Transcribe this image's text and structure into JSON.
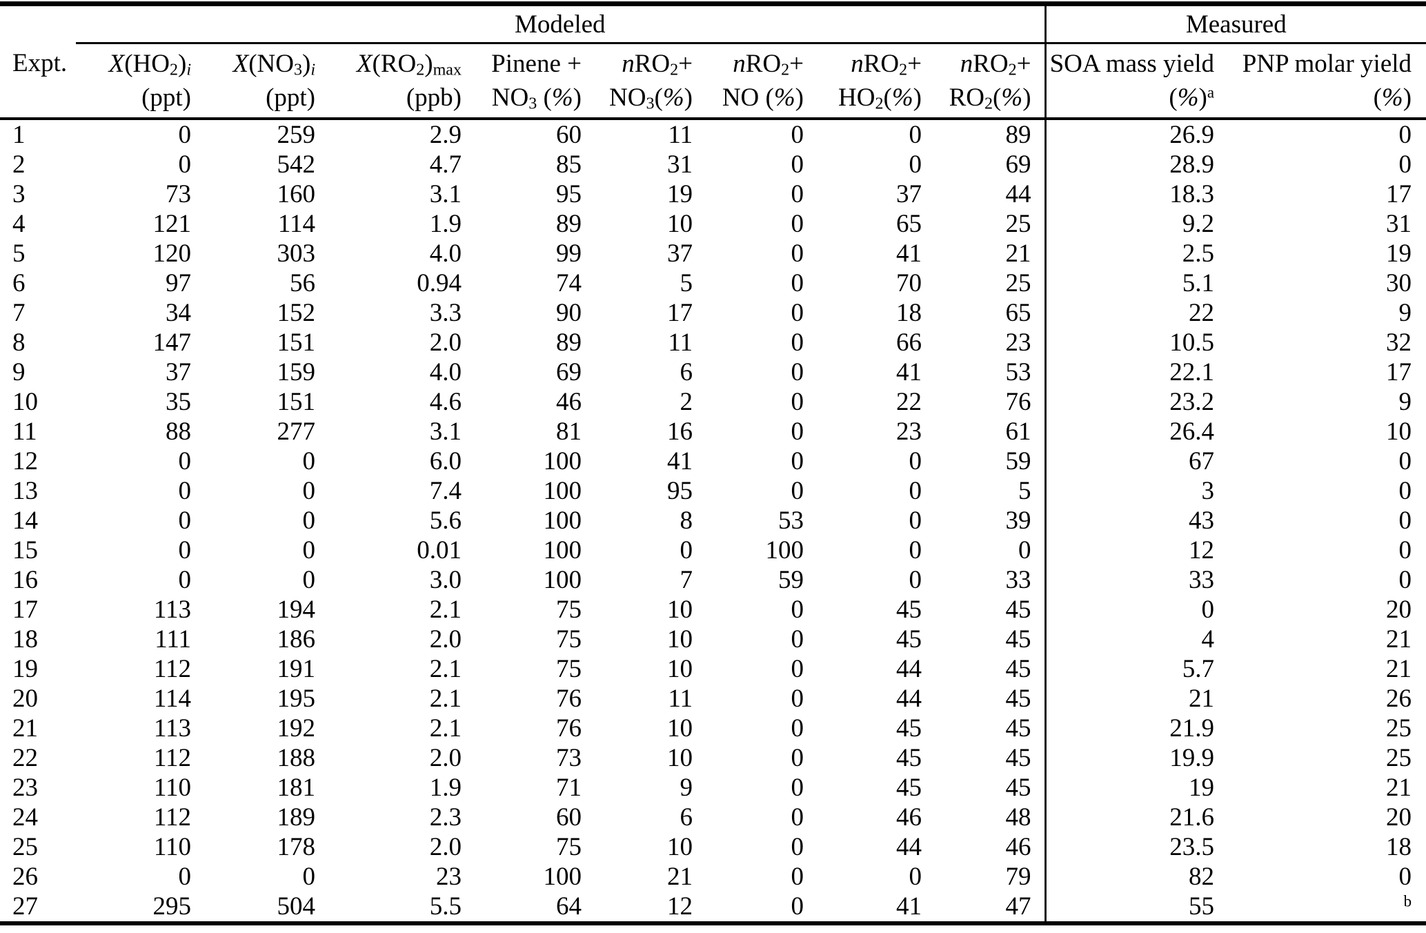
{
  "title_groups": {
    "modeled": "Modeled",
    "measured": "Measured"
  },
  "columns": [
    {
      "id": "expt",
      "line1": "Expt.",
      "line2": ""
    },
    {
      "id": "x_ho2_i",
      "line1": "*X*(HO_{2})_{*i*}",
      "line2": "(ppt)"
    },
    {
      "id": "x_no3_i",
      "line1": "*X*(NO_{3})_{*i*}",
      "line2": "(ppt)"
    },
    {
      "id": "x_ro2_max",
      "line1": "*X*(RO_{2})_{max}",
      "line2": "(ppb)"
    },
    {
      "id": "pinene_no3",
      "line1": "Pinene +",
      "line2": "NO_{3} (*%*)"
    },
    {
      "id": "nro2_no3",
      "line1": "*n*RO_{2}+",
      "line2": "NO_{3}(*%*)"
    },
    {
      "id": "nro2_no",
      "line1": "*n*RO_{2}+",
      "line2": "NO (*%*)"
    },
    {
      "id": "nro2_ho2",
      "line1": "*n*RO_{2}+",
      "line2": "HO_{2}(*%*)"
    },
    {
      "id": "nro2_ro2",
      "line1": "*n*RO_{2}+",
      "line2": "RO_{2}(*%*)"
    },
    {
      "id": "soa_yield",
      "line1": "SOA mass yield",
      "line2": "(*%*)^{a}"
    },
    {
      "id": "pnp_yield",
      "line1": "PNP molar yield",
      "line2": "(*%*)"
    }
  ],
  "footnote_markers": [
    "a",
    "b"
  ],
  "rows": [
    [
      "1",
      "0",
      "259",
      "2.9",
      "60",
      "11",
      "0",
      "0",
      "89",
      "26.9",
      "0"
    ],
    [
      "2",
      "0",
      "542",
      "4.7",
      "85",
      "31",
      "0",
      "0",
      "69",
      "28.9",
      "0"
    ],
    [
      "3",
      "73",
      "160",
      "3.1",
      "95",
      "19",
      "0",
      "37",
      "44",
      "18.3",
      "17"
    ],
    [
      "4",
      "121",
      "114",
      "1.9",
      "89",
      "10",
      "0",
      "65",
      "25",
      "9.2",
      "31"
    ],
    [
      "5",
      "120",
      "303",
      "4.0",
      "99",
      "37",
      "0",
      "41",
      "21",
      "2.5",
      "19"
    ],
    [
      "6",
      "97",
      "56",
      "0.94",
      "74",
      "5",
      "0",
      "70",
      "25",
      "5.1",
      "30"
    ],
    [
      "7",
      "34",
      "152",
      "3.3",
      "90",
      "17",
      "0",
      "18",
      "65",
      "22",
      "9"
    ],
    [
      "8",
      "147",
      "151",
      "2.0",
      "89",
      "11",
      "0",
      "66",
      "23",
      "10.5",
      "32"
    ],
    [
      "9",
      "37",
      "159",
      "4.0",
      "69",
      "6",
      "0",
      "41",
      "53",
      "22.1",
      "17"
    ],
    [
      "10",
      "35",
      "151",
      "4.6",
      "46",
      "2",
      "0",
      "22",
      "76",
      "23.2",
      "9"
    ],
    [
      "11",
      "88",
      "277",
      "3.1",
      "81",
      "16",
      "0",
      "23",
      "61",
      "26.4",
      "10"
    ],
    [
      "12",
      "0",
      "0",
      "6.0",
      "100",
      "41",
      "0",
      "0",
      "59",
      "67",
      "0"
    ],
    [
      "13",
      "0",
      "0",
      "7.4",
      "100",
      "95",
      "0",
      "0",
      "5",
      "3",
      "0"
    ],
    [
      "14",
      "0",
      "0",
      "5.6",
      "100",
      "8",
      "53",
      "0",
      "39",
      "43",
      "0"
    ],
    [
      "15",
      "0",
      "0",
      "0.01",
      "100",
      "0",
      "100",
      "0",
      "0",
      "12",
      "0"
    ],
    [
      "16",
      "0",
      "0",
      "3.0",
      "100",
      "7",
      "59",
      "0",
      "33",
      "33",
      "0"
    ],
    [
      "17",
      "113",
      "194",
      "2.1",
      "75",
      "10",
      "0",
      "45",
      "45",
      "0",
      "20"
    ],
    [
      "18",
      "111",
      "186",
      "2.0",
      "75",
      "10",
      "0",
      "45",
      "45",
      "4",
      "21"
    ],
    [
      "19",
      "112",
      "191",
      "2.1",
      "75",
      "10",
      "0",
      "44",
      "45",
      "5.7",
      "21"
    ],
    [
      "20",
      "114",
      "195",
      "2.1",
      "76",
      "11",
      "0",
      "44",
      "45",
      "21",
      "26"
    ],
    [
      "21",
      "113",
      "192",
      "2.1",
      "76",
      "10",
      "0",
      "45",
      "45",
      "21.9",
      "25"
    ],
    [
      "22",
      "112",
      "188",
      "2.0",
      "73",
      "10",
      "0",
      "45",
      "45",
      "19.9",
      "25"
    ],
    [
      "23",
      "110",
      "181",
      "1.9",
      "71",
      "9",
      "0",
      "45",
      "45",
      "19",
      "21"
    ],
    [
      "24",
      "112",
      "189",
      "2.3",
      "60",
      "6",
      "0",
      "46",
      "48",
      "21.6",
      "20"
    ],
    [
      "25",
      "110",
      "178",
      "2.0",
      "75",
      "10",
      "0",
      "44",
      "46",
      "23.5",
      "18"
    ],
    [
      "26",
      "0",
      "0",
      "23",
      "100",
      "21",
      "0",
      "0",
      "79",
      "82",
      "0"
    ],
    [
      "27",
      "295",
      "504",
      "5.5",
      "64",
      "12",
      "0",
      "41",
      "47",
      "55",
      "^{b}"
    ]
  ]
}
